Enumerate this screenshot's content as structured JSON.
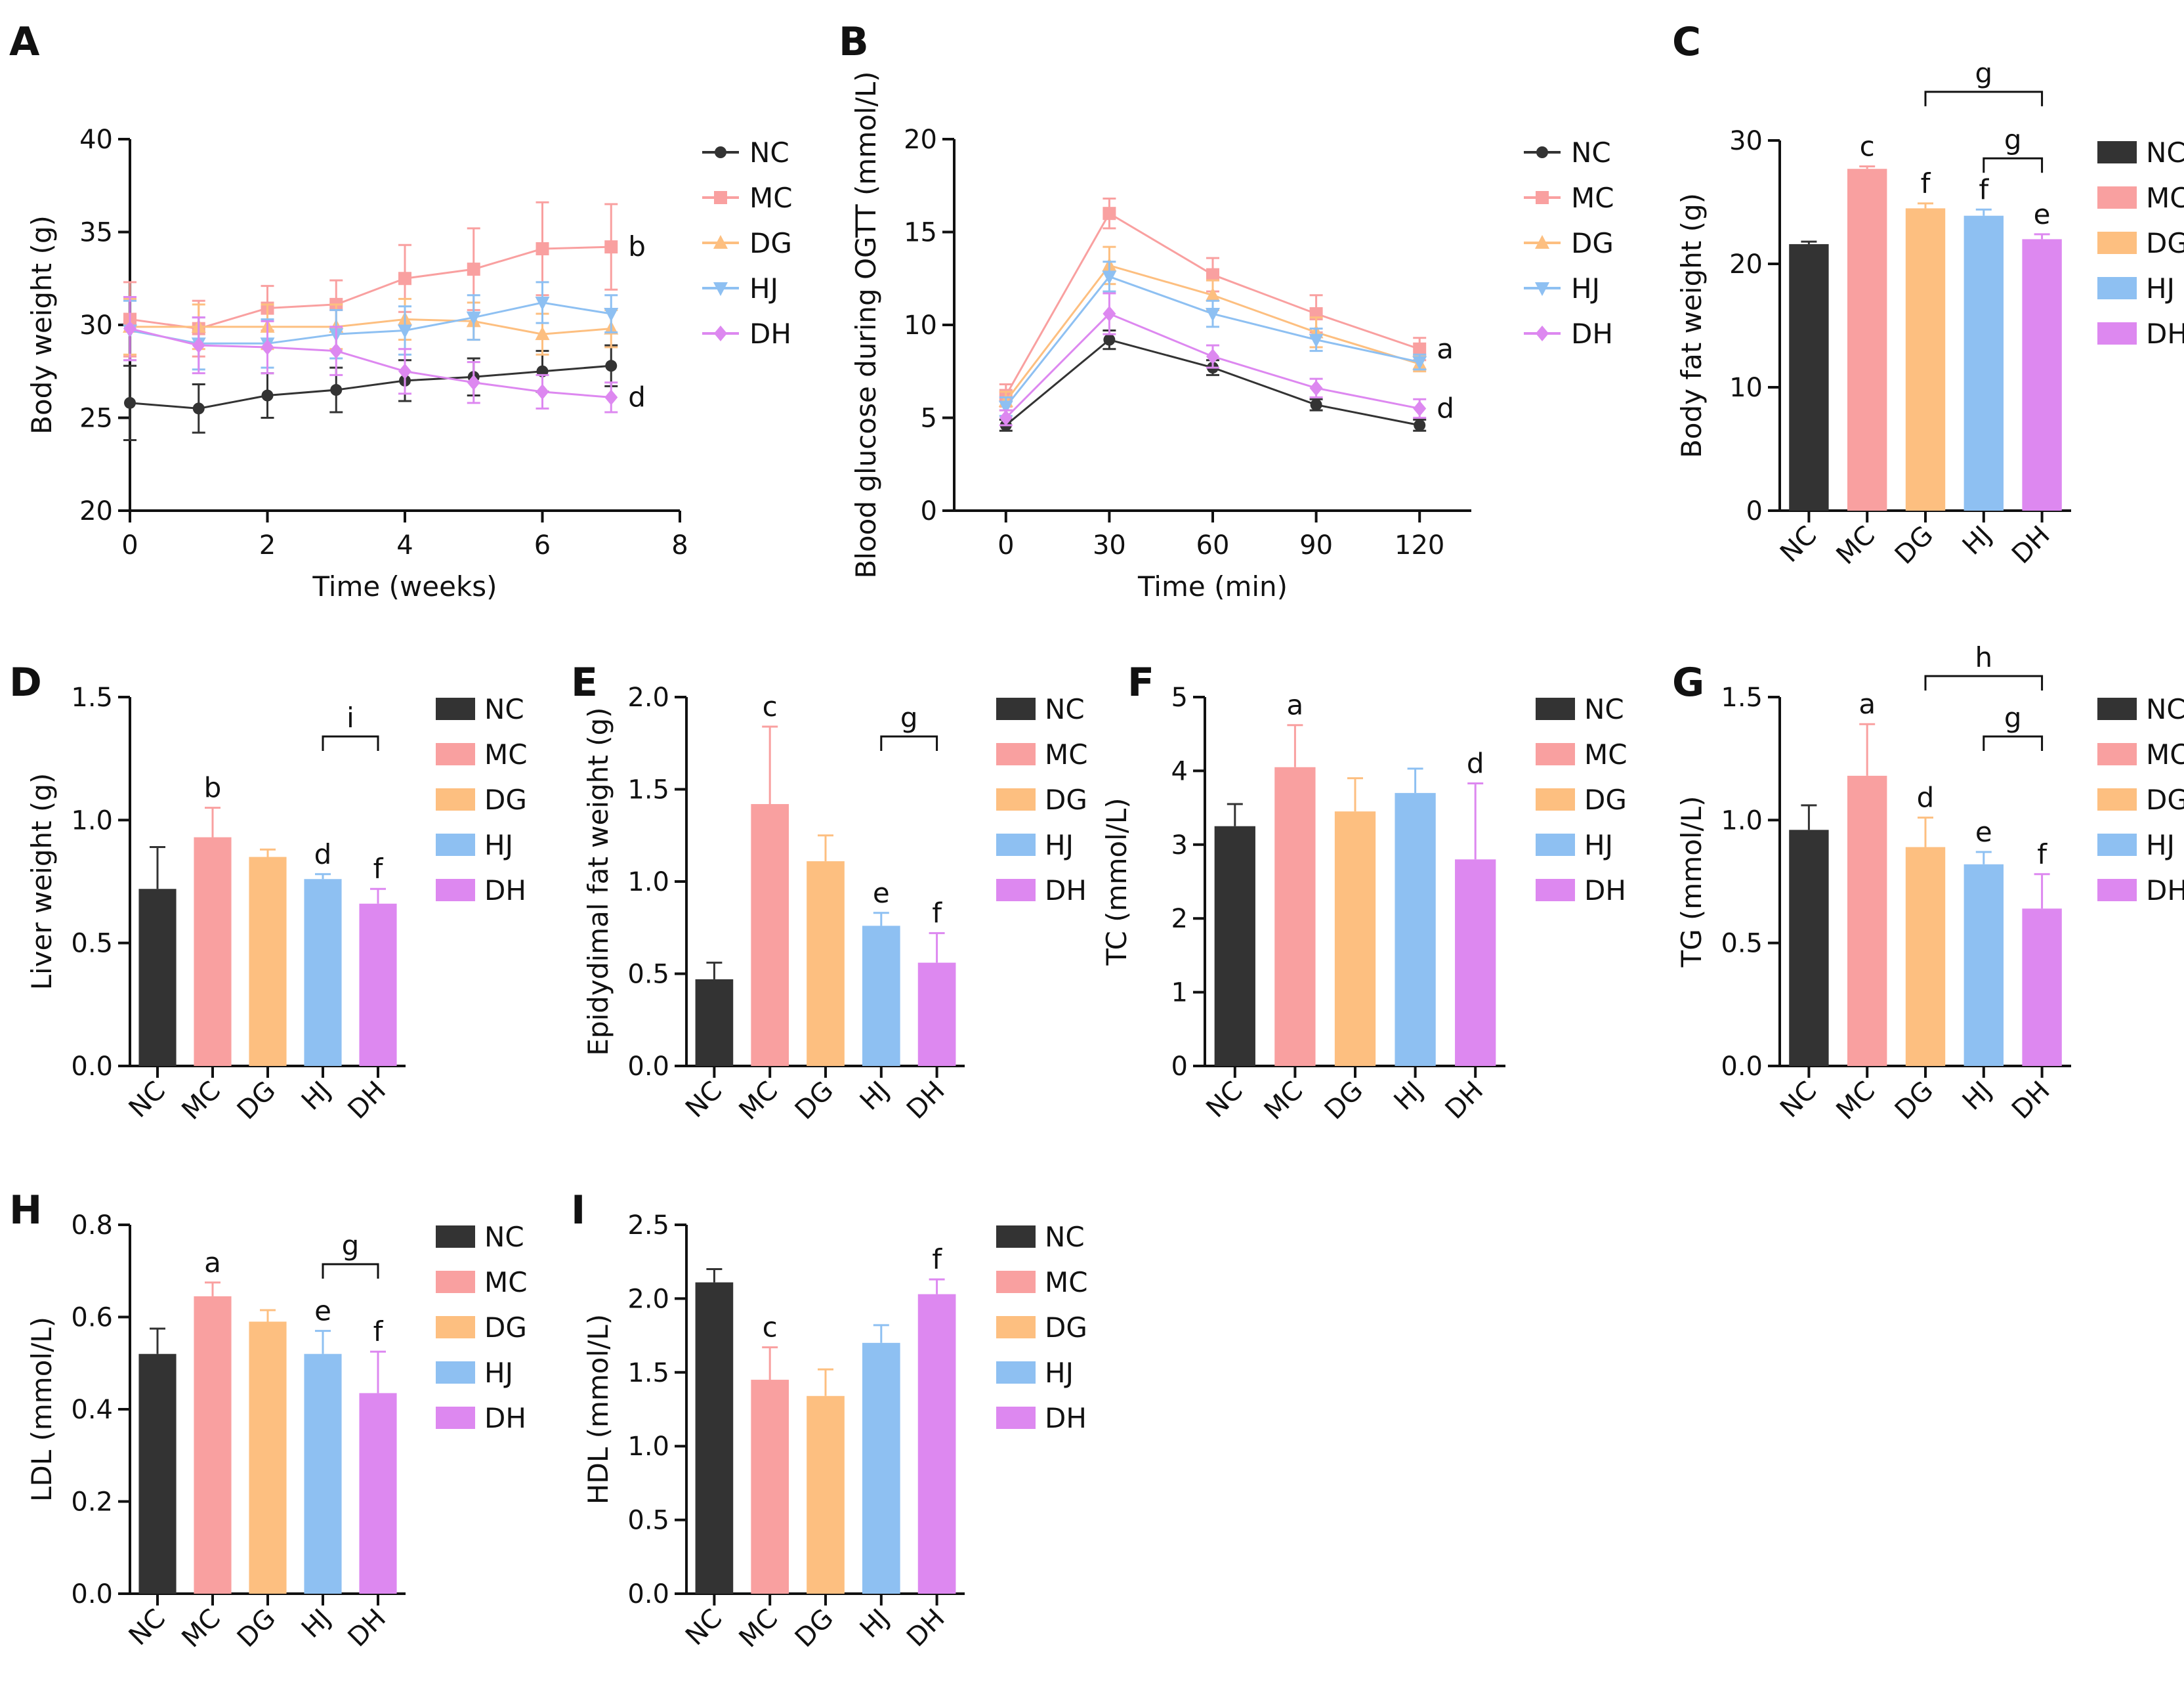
{
  "colors": {
    "NC": "#333333",
    "MC": "#f9a0a0",
    "DG": "#fdbf80",
    "HJ": "#8ec0f2",
    "DH": "#dd88f0"
  },
  "groups": [
    "NC",
    "MC",
    "DG",
    "HJ",
    "DH"
  ],
  "chart_data": [
    {
      "panel": "A",
      "type": "line",
      "xlabel": "Time (weeks)",
      "ylabel": "Body weight (g)",
      "xlim": [
        0,
        8
      ],
      "ylim": [
        20,
        40
      ],
      "xticks": [
        "0",
        "2",
        "4",
        "6",
        "8"
      ],
      "yticks": [
        "20",
        "25",
        "30",
        "35",
        "40"
      ],
      "x": [
        0,
        1,
        2,
        3,
        4,
        5,
        6,
        7
      ],
      "series": [
        {
          "name": "NC",
          "marker": "circle",
          "values": [
            25.8,
            25.5,
            26.2,
            26.5,
            27.0,
            27.2,
            27.5,
            27.8
          ],
          "errors": [
            2.0,
            1.3,
            1.2,
            1.2,
            1.1,
            1.0,
            1.1,
            1.1
          ]
        },
        {
          "name": "MC",
          "marker": "square",
          "values": [
            30.3,
            29.8,
            30.9,
            31.1,
            32.5,
            33.0,
            34.1,
            34.2
          ],
          "errors": [
            2.0,
            1.5,
            1.2,
            1.3,
            1.8,
            2.2,
            2.5,
            2.3
          ]
        },
        {
          "name": "DG",
          "marker": "triangle-up",
          "values": [
            29.9,
            29.9,
            29.9,
            29.9,
            30.3,
            30.2,
            29.5,
            29.8
          ],
          "errors": [
            1.5,
            1.2,
            1.2,
            1.2,
            1.1,
            1.0,
            1.1,
            1.0
          ]
        },
        {
          "name": "HJ",
          "marker": "triangle-down",
          "values": [
            29.7,
            29.0,
            29.0,
            29.5,
            29.7,
            30.4,
            31.2,
            30.6
          ],
          "errors": [
            1.6,
            1.4,
            1.3,
            1.3,
            1.3,
            1.2,
            1.1,
            1.0
          ]
        },
        {
          "name": "DH",
          "marker": "diamond",
          "values": [
            29.8,
            28.9,
            28.8,
            28.6,
            27.5,
            26.9,
            26.4,
            26.1
          ],
          "errors": [
            1.7,
            1.5,
            1.4,
            1.3,
            1.2,
            1.1,
            0.9,
            0.8
          ]
        }
      ],
      "annotations": [
        {
          "text": "b",
          "x": 7,
          "y": 34.2
        },
        {
          "text": "d",
          "x": 7,
          "y": 26.1
        }
      ]
    },
    {
      "panel": "B",
      "type": "line",
      "xlabel": "Time (min)",
      "ylabel": "Blood glucose during OGTT (mmol/L)",
      "xlim": [
        -15,
        135
      ],
      "ylim": [
        0,
        20
      ],
      "xticks": [
        "0",
        "30",
        "60",
        "90",
        "120"
      ],
      "yticks": [
        "0",
        "5",
        "10",
        "15",
        "20"
      ],
      "x": [
        0,
        30,
        60,
        90,
        120
      ],
      "series": [
        {
          "name": "NC",
          "marker": "circle",
          "values": [
            4.6,
            9.2,
            7.7,
            5.7,
            4.6
          ],
          "errors": [
            0.3,
            0.5,
            0.4,
            0.3,
            0.3
          ]
        },
        {
          "name": "MC",
          "marker": "square",
          "values": [
            6.2,
            16.0,
            12.7,
            10.6,
            8.7
          ],
          "errors": [
            0.6,
            0.8,
            0.9,
            1.0,
            0.6
          ]
        },
        {
          "name": "DG",
          "marker": "triangle-up",
          "values": [
            5.9,
            13.2,
            11.6,
            9.6,
            7.9
          ],
          "errors": [
            0.5,
            1.0,
            0.8,
            0.8,
            0.4
          ]
        },
        {
          "name": "HJ",
          "marker": "triangle-down",
          "values": [
            5.6,
            12.6,
            10.6,
            9.2,
            8.0
          ],
          "errors": [
            0.5,
            0.8,
            0.7,
            0.6,
            0.4
          ]
        },
        {
          "name": "DH",
          "marker": "diamond",
          "values": [
            5.0,
            10.6,
            8.3,
            6.6,
            5.5
          ],
          "errors": [
            0.4,
            1.1,
            0.6,
            0.5,
            0.5
          ]
        }
      ],
      "annotations": [
        {
          "text": "a",
          "x": 120,
          "y": 8.7
        },
        {
          "text": "d",
          "x": 120,
          "y": 5.5
        }
      ]
    },
    {
      "panel": "C",
      "type": "bar",
      "ylabel": "Body fat weight (g)",
      "ylim": [
        0,
        30
      ],
      "yticks": [
        "0",
        "10",
        "20",
        "30"
      ],
      "categories": [
        "NC",
        "MC",
        "DG",
        "HJ",
        "DH"
      ],
      "values": [
        21.6,
        27.7,
        24.5,
        23.9,
        22.0
      ],
      "errors": [
        0.2,
        0.2,
        0.4,
        0.5,
        0.4
      ],
      "labels": [
        "",
        "c",
        "f",
        "f",
        "e"
      ],
      "brackets": [
        {
          "from": 2,
          "to": 4,
          "label": "g"
        },
        {
          "from": 3,
          "to": 4,
          "label": "g"
        }
      ]
    },
    {
      "panel": "D",
      "type": "bar",
      "ylabel": "Liver weight (g)",
      "ylim": [
        0,
        1.5
      ],
      "yticks": [
        "0.0",
        "0.5",
        "1.0",
        "1.5"
      ],
      "categories": [
        "NC",
        "MC",
        "DG",
        "HJ",
        "DH"
      ],
      "values": [
        0.72,
        0.93,
        0.85,
        0.76,
        0.66
      ],
      "errors": [
        0.17,
        0.12,
        0.03,
        0.02,
        0.06
      ],
      "labels": [
        "",
        "b",
        "",
        "d",
        "f"
      ],
      "brackets": [
        {
          "from": 3,
          "to": 4,
          "label": "i"
        }
      ]
    },
    {
      "panel": "E",
      "type": "bar",
      "ylabel": "Epidydimal fat weight (g)",
      "ylim": [
        0,
        2.0
      ],
      "yticks": [
        "0.0",
        "0.5",
        "1.0",
        "1.5",
        "2.0"
      ],
      "categories": [
        "NC",
        "MC",
        "DG",
        "HJ",
        "DH"
      ],
      "values": [
        0.47,
        1.42,
        1.11,
        0.76,
        0.56
      ],
      "errors": [
        0.09,
        0.42,
        0.14,
        0.07,
        0.16
      ],
      "labels": [
        "",
        "c",
        "",
        "e",
        "f"
      ],
      "brackets": [
        {
          "from": 3,
          "to": 4,
          "label": "g"
        }
      ]
    },
    {
      "panel": "F",
      "type": "bar",
      "ylabel": "TC (mmol/L)",
      "ylim": [
        0,
        5
      ],
      "yticks": [
        "0",
        "1",
        "2",
        "3",
        "4",
        "5"
      ],
      "categories": [
        "NC",
        "MC",
        "DG",
        "HJ",
        "DH"
      ],
      "values": [
        3.25,
        4.05,
        3.45,
        3.7,
        2.8
      ],
      "errors": [
        0.3,
        0.57,
        0.45,
        0.33,
        1.03
      ],
      "labels": [
        "",
        "a",
        "",
        "",
        "d"
      ],
      "brackets": []
    },
    {
      "panel": "G",
      "type": "bar",
      "ylabel": "TG (mmol/L)",
      "ylim": [
        0,
        1.5
      ],
      "yticks": [
        "0.0",
        "0.5",
        "1.0",
        "1.5"
      ],
      "categories": [
        "NC",
        "MC",
        "DG",
        "HJ",
        "DH"
      ],
      "values": [
        0.96,
        1.18,
        0.89,
        0.82,
        0.64
      ],
      "errors": [
        0.1,
        0.21,
        0.12,
        0.05,
        0.14
      ],
      "labels": [
        "",
        "a",
        "d",
        "e",
        "f"
      ],
      "brackets": [
        {
          "from": 2,
          "to": 4,
          "label": "h"
        },
        {
          "from": 3,
          "to": 4,
          "label": "g"
        }
      ]
    },
    {
      "panel": "H",
      "type": "bar",
      "ylabel": "LDL (mmol/L)",
      "ylim": [
        0,
        0.8
      ],
      "yticks": [
        "0.0",
        "0.2",
        "0.4",
        "0.6",
        "0.8"
      ],
      "categories": [
        "NC",
        "MC",
        "DG",
        "HJ",
        "DH"
      ],
      "values": [
        0.52,
        0.645,
        0.59,
        0.52,
        0.435
      ],
      "errors": [
        0.055,
        0.03,
        0.025,
        0.05,
        0.09
      ],
      "labels": [
        "",
        "a",
        "",
        "e",
        "f"
      ],
      "brackets": [
        {
          "from": 3,
          "to": 4,
          "label": "g"
        }
      ]
    },
    {
      "panel": "I",
      "type": "bar",
      "ylabel": "HDL (mmol/L)",
      "ylim": [
        0,
        2.5
      ],
      "yticks": [
        "0.0",
        "0.5",
        "1.0",
        "1.5",
        "2.0",
        "2.5"
      ],
      "categories": [
        "NC",
        "MC",
        "DG",
        "HJ",
        "DH"
      ],
      "values": [
        2.11,
        1.45,
        1.34,
        1.7,
        2.03
      ],
      "errors": [
        0.09,
        0.22,
        0.18,
        0.12,
        0.1
      ],
      "labels": [
        "",
        "c",
        "",
        "",
        "f"
      ],
      "brackets": []
    }
  ]
}
